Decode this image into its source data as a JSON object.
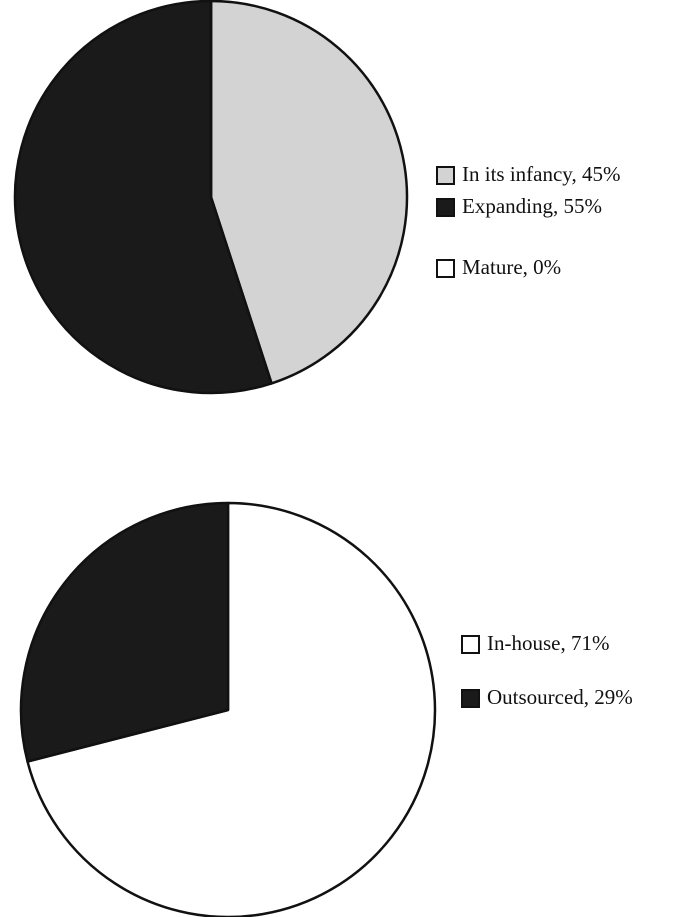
{
  "chart_data": [
    {
      "type": "pie",
      "categories": [
        "In its infancy, 45%",
        "Expanding, 55%",
        "Mature, 0%"
      ],
      "values": [
        45,
        55,
        0
      ],
      "colors": [
        "#d3d3d3",
        "#1a1a1a",
        "#ffffff"
      ]
    },
    {
      "type": "pie",
      "categories": [
        "In-house, 71%",
        "Outsourced, 29%"
      ],
      "values": [
        71,
        29
      ],
      "colors": [
        "#ffffff",
        "#1a1a1a"
      ]
    }
  ]
}
